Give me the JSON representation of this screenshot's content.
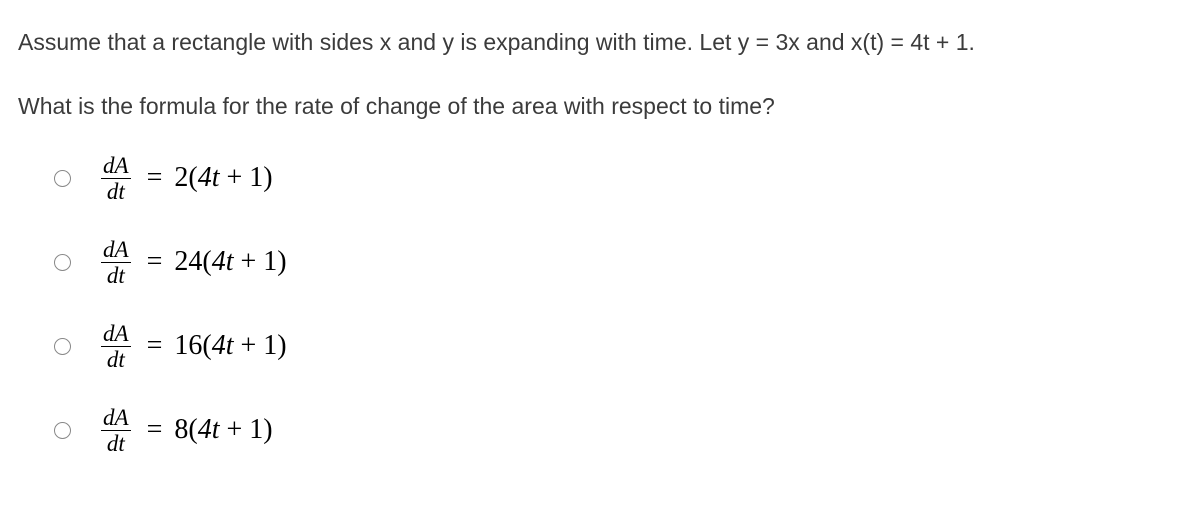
{
  "question": {
    "line1": "Assume that a rectangle with sides x and y is expanding with time. Let y = 3x and x(t) = 4t + 1.",
    "line2": "What is the formula for the rate of change of the area with respect to time?"
  },
  "derivative": {
    "numerator": "dA",
    "denominator": "dt"
  },
  "options": [
    {
      "coefficient": "2",
      "inner": "4t + 1"
    },
    {
      "coefficient": "24",
      "inner": "4t + 1"
    },
    {
      "coefficient": "16",
      "inner": "4t + 1"
    },
    {
      "coefficient": "8",
      "inner": "4t + 1"
    }
  ],
  "style": {
    "text_color": "#3b3b3b",
    "formula_color": "#000000",
    "radio_border": "#888888",
    "question_fontsize": 23,
    "formula_fontsize": 28,
    "frac_fontsize": 23
  }
}
